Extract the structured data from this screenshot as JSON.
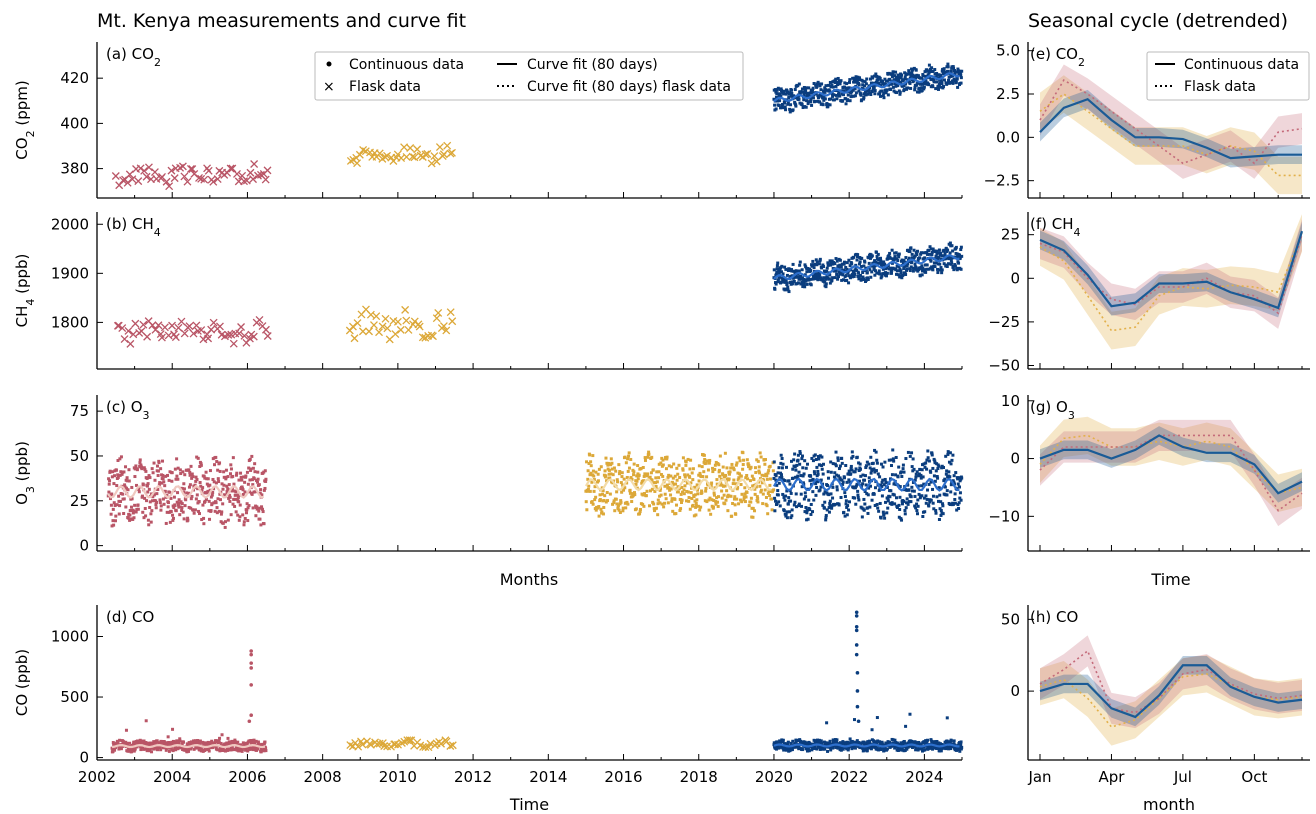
{
  "titles": {
    "left": "Mt. Kenya measurements and curve fit",
    "right": "Seasonal cycle (detrended)",
    "mid_left_xlabel": "Months",
    "mid_right_xlabel": "Time"
  },
  "colors": {
    "period1": "#b95566",
    "period1_fit": "#f0c8c0",
    "period2": "#dca838",
    "period2_fit": "#f3dca8",
    "period3": "#0a3d7e",
    "period3_fit": "#2d6fcc",
    "seas_cont": "#1a5b96",
    "seas_p1": "#c46a7a",
    "seas_p2": "#e2b04a"
  },
  "legend_left": {
    "continuous": "Continuous data",
    "flask": "Flask data",
    "fit": "Curve fit (80 days)",
    "fit_flask": "Curve fit (80 days) flask data"
  },
  "legend_right": {
    "continuous": "Continuous data",
    "flask": "Flask data"
  },
  "chart_data": [
    {
      "id": "a",
      "type": "scatter",
      "label_main": "(a) CO",
      "label_sub": "2",
      "ylabel_main": "CO",
      "ylabel_sub": "2",
      "ylabel_rest": " (ppm)",
      "xlim": [
        2002,
        2025
      ],
      "ylim": [
        367,
        436
      ],
      "yticks": [
        380,
        400,
        420
      ],
      "series": [
        {
          "period": "2002-2006",
          "kind": "flask",
          "x_range": [
            2002.5,
            2006.6
          ],
          "y_mean": 377,
          "y_spread": 4
        },
        {
          "period": "2008-2011",
          "kind": "flask",
          "x_range": [
            2008.7,
            2011.5
          ],
          "y_mean": 386,
          "y_spread": 3
        },
        {
          "period": "2020-2025",
          "kind": "continuous",
          "x_range": [
            2020.0,
            2025.0
          ],
          "y_start": 410,
          "y_end": 422,
          "y_spread": 5
        }
      ]
    },
    {
      "id": "b",
      "type": "scatter",
      "label_main": "(b) CH",
      "label_sub": "4",
      "ylabel_main": "CH",
      "ylabel_sub": "4",
      "ylabel_rest": " (ppb)",
      "xlim": [
        2002,
        2025
      ],
      "ylim": [
        1705,
        2025
      ],
      "yticks": [
        1800,
        1900,
        2000
      ],
      "series": [
        {
          "period": "2002-2006",
          "kind": "flask",
          "x_range": [
            2002.5,
            2006.6
          ],
          "y_mean": 1780,
          "y_spread": 20
        },
        {
          "period": "2008-2011",
          "kind": "flask",
          "x_range": [
            2008.7,
            2011.5
          ],
          "y_mean": 1795,
          "y_spread": 25
        },
        {
          "period": "2020-2025",
          "kind": "continuous",
          "x_range": [
            2020.0,
            2025.0
          ],
          "y_start": 1890,
          "y_end": 1935,
          "y_spread": 25
        }
      ]
    },
    {
      "id": "c",
      "type": "scatter",
      "label_main": "(c) O",
      "label_sub": "3",
      "ylabel_main": "O",
      "ylabel_sub": "3",
      "ylabel_rest": " (ppb)",
      "xlim": [
        2002,
        2025
      ],
      "ylim": [
        -3,
        84
      ],
      "yticks": [
        0,
        25,
        50,
        75
      ],
      "series": [
        {
          "period": "2002-2006",
          "kind": "continuous",
          "x_range": [
            2002.3,
            2006.5
          ],
          "y_mean": 30,
          "y_spread": 16
        },
        {
          "period": "2015-2020",
          "kind": "continuous",
          "x_range": [
            2015.0,
            2020.0
          ],
          "y_mean": 34,
          "y_spread": 15
        },
        {
          "period": "2020-2025",
          "kind": "continuous",
          "x_range": [
            2020.0,
            2025.0
          ],
          "y_mean": 34,
          "y_spread": 16
        }
      ]
    },
    {
      "id": "d",
      "type": "scatter",
      "label_main": "(d) CO",
      "label_sub": "",
      "ylabel_main": "CO (ppb)",
      "ylabel_sub": "",
      "ylabel_rest": "",
      "xlim": [
        2002,
        2025
      ],
      "ylim": [
        -20,
        1260
      ],
      "yticks": [
        0,
        500,
        1000
      ],
      "xticks": [
        2002,
        2004,
        2006,
        2008,
        2010,
        2012,
        2014,
        2016,
        2018,
        2020,
        2022,
        2024
      ],
      "xlabel": "Time",
      "series": [
        {
          "period": "2002-2006",
          "kind": "continuous",
          "x_range": [
            2002.4,
            2006.5
          ],
          "y_mean": 95,
          "y_spread": 40
        },
        {
          "period": "2008-2011",
          "kind": "flask",
          "x_range": [
            2008.7,
            2011.5
          ],
          "y_mean": 110,
          "y_spread": 25
        },
        {
          "period": "2020-2025",
          "kind": "continuous",
          "x_range": [
            2020.0,
            2025.0
          ],
          "y_mean": 100,
          "y_spread": 40
        }
      ]
    }
  ],
  "seasonal_data": [
    {
      "id": "e",
      "label_main": "(e) CO",
      "label_sub": "2",
      "ylim": [
        -3.5,
        5.5
      ],
      "yticks": [
        5.0,
        2.5,
        0.0,
        -2.5
      ],
      "ytick_labels": [
        "5.0",
        "2.5",
        "0.0",
        "−2.5"
      ],
      "continuous": [
        0.3,
        1.7,
        2.2,
        1.0,
        0.0,
        0.0,
        -0.1,
        -0.6,
        -1.2,
        -1.1,
        -1.0,
        -1.0
      ],
      "p1": [
        1.0,
        3.3,
        2.5,
        1.5,
        0.5,
        -0.5,
        -1.5,
        -1.0,
        -0.5,
        -1.5,
        0.3,
        0.5
      ],
      "p2": [
        1.5,
        2.5,
        1.5,
        0.5,
        -0.5,
        -0.5,
        -0.5,
        -1.0,
        -0.5,
        -0.8,
        -2.2,
        -2.2
      ]
    },
    {
      "id": "f",
      "label_main": "(f) CH",
      "label_sub": "4",
      "ylim": [
        -52,
        38
      ],
      "yticks": [
        25,
        0,
        -25,
        -50
      ],
      "ytick_labels": [
        "25",
        "0",
        "−25",
        "−50"
      ],
      "continuous": [
        22,
        16,
        2,
        -16,
        -14,
        -3,
        -3,
        -2,
        -8,
        -12,
        -17,
        27
      ],
      "p1": [
        20,
        15,
        0,
        -12,
        -15,
        -5,
        -5,
        0,
        -8,
        -10,
        -20,
        25
      ],
      "p2": [
        18,
        10,
        -10,
        -30,
        -28,
        -10,
        -5,
        -6,
        -4,
        -5,
        -8,
        26
      ]
    },
    {
      "id": "g",
      "label_main": "(g) O",
      "label_sub": "3",
      "ylim": [
        -16,
        11
      ],
      "yticks": [
        10,
        0,
        -10
      ],
      "ytick_labels": [
        "10",
        "0",
        "−10"
      ],
      "continuous": [
        0,
        1.5,
        1.5,
        0,
        1.5,
        4,
        2,
        1,
        1,
        -1,
        -6,
        -4
      ],
      "p1": [
        -2,
        2,
        2,
        2,
        2,
        4,
        4,
        4,
        4,
        -2,
        -9,
        -6
      ],
      "p2": [
        -1,
        3.5,
        4,
        2,
        2,
        3,
        2,
        3,
        2,
        -2,
        -6,
        -5
      ]
    },
    {
      "id": "h",
      "label_main": "(h) CO",
      "label_sub": "",
      "ylim": [
        -48,
        60
      ],
      "yticks": [
        50,
        0
      ],
      "ytick_labels": [
        "50",
        "0"
      ],
      "continuous": [
        0,
        5,
        5,
        -12,
        -18,
        -3,
        18,
        18,
        3,
        -4,
        -8,
        -6
      ],
      "p1": [
        5,
        15,
        28,
        -12,
        -15,
        -5,
        12,
        15,
        5,
        -2,
        -5,
        -3
      ],
      "p2": [
        3,
        8,
        -5,
        -25,
        -20,
        -5,
        10,
        12,
        4,
        -4,
        -6,
        -4
      ],
      "xticks": [
        "Jan",
        "Apr",
        "Jul",
        "Oct"
      ],
      "xlabel": "month"
    }
  ]
}
